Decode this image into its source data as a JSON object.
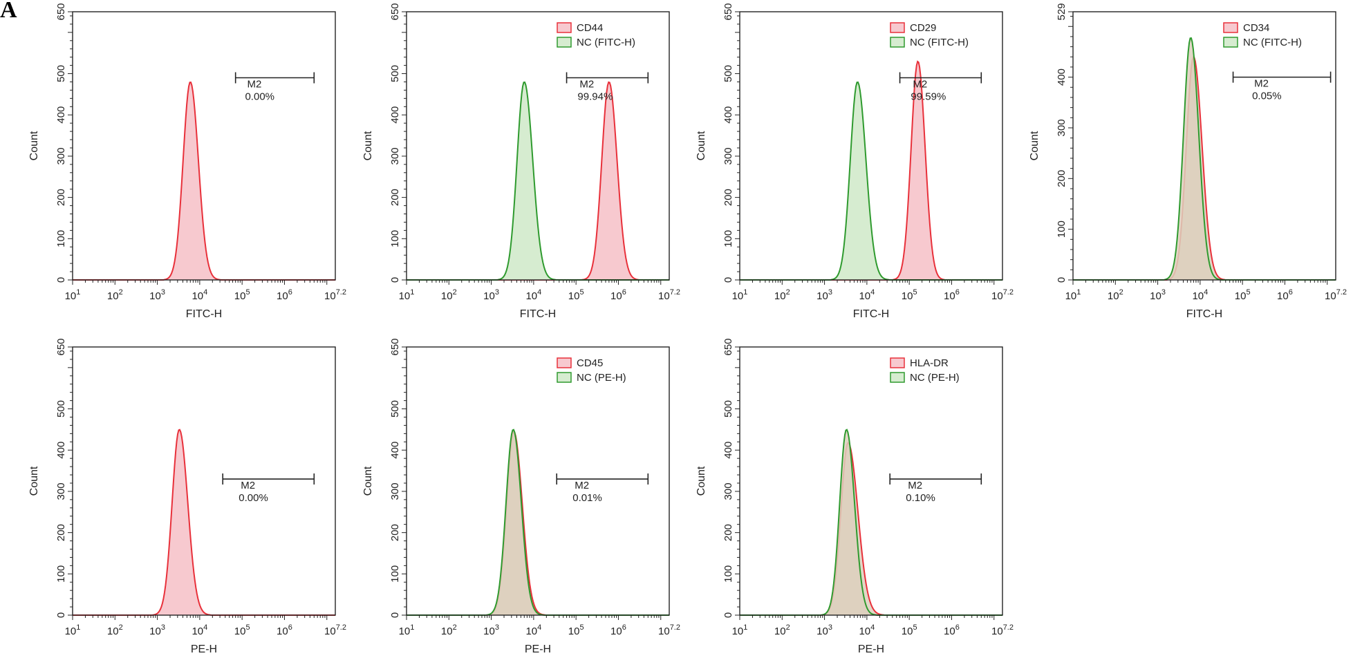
{
  "figure_label": "A",
  "colors": {
    "sample_line": "#e8303a",
    "sample_fill": "#f7c9cf",
    "control_line": "#2e9a2e",
    "control_fill": "#d6ecd0",
    "overlap_fill": "#ddd0bd",
    "axis": "#222222"
  },
  "chart_data": [
    {
      "type": "area",
      "x_scale": "log",
      "xlabel": "FITC-H",
      "ylabel": "Count",
      "xlim": [
        10,
        15848931.9
      ],
      "ylim": [
        0,
        650
      ],
      "x_ticks": [
        {
          "base": "10",
          "exp": "1",
          "v": 10
        },
        {
          "base": "10",
          "exp": "2",
          "v": 100
        },
        {
          "base": "10",
          "exp": "3",
          "v": 1000
        },
        {
          "base": "10",
          "exp": "4",
          "v": 10000
        },
        {
          "base": "10",
          "exp": "5",
          "v": 100000
        },
        {
          "base": "10",
          "exp": "6",
          "v": 1000000
        },
        {
          "base": "10",
          "exp": "7.2",
          "v": 15848931.9
        }
      ],
      "y_ticks": [
        0,
        100,
        200,
        300,
        400,
        500,
        650
      ],
      "legend": [],
      "series": [
        {
          "role": "sample",
          "peak_x": 6000,
          "peak_y": 480,
          "sigma_left": 0.17,
          "sigma_right": 0.19
        }
      ],
      "gate": {
        "label": "M2",
        "percent": "0.00%",
        "x_range": [
          70000,
          5000000
        ],
        "y": 490
      }
    },
    {
      "type": "area",
      "x_scale": "log",
      "xlabel": "FITC-H",
      "ylabel": "Count",
      "xlim": [
        10,
        15848931.9
      ],
      "ylim": [
        0,
        650
      ],
      "x_ticks": [
        {
          "base": "10",
          "exp": "1",
          "v": 10
        },
        {
          "base": "10",
          "exp": "2",
          "v": 100
        },
        {
          "base": "10",
          "exp": "3",
          "v": 1000
        },
        {
          "base": "10",
          "exp": "4",
          "v": 10000
        },
        {
          "base": "10",
          "exp": "5",
          "v": 100000
        },
        {
          "base": "10",
          "exp": "6",
          "v": 1000000
        },
        {
          "base": "10",
          "exp": "7.2",
          "v": 15848931.9
        }
      ],
      "y_ticks": [
        0,
        100,
        200,
        300,
        400,
        500,
        650
      ],
      "legend": [
        "CD44",
        "NC (FITC-H)"
      ],
      "series": [
        {
          "name": "CD44",
          "role": "sample",
          "peak_x": 600000,
          "peak_y": 480,
          "sigma_left": 0.17,
          "sigma_right": 0.19
        },
        {
          "name": "NC (FITC-H)",
          "role": "control",
          "peak_x": 6000,
          "peak_y": 480,
          "sigma_left": 0.17,
          "sigma_right": 0.2
        }
      ],
      "gate": {
        "label": "M2",
        "percent": "99.94%",
        "x_range": [
          60000,
          5000000
        ],
        "y": 490
      }
    },
    {
      "type": "area",
      "x_scale": "log",
      "xlabel": "FITC-H",
      "ylabel": "Count",
      "xlim": [
        10,
        15848931.9
      ],
      "ylim": [
        0,
        650
      ],
      "x_ticks": [
        {
          "base": "10",
          "exp": "1",
          "v": 10
        },
        {
          "base": "10",
          "exp": "2",
          "v": 100
        },
        {
          "base": "10",
          "exp": "3",
          "v": 1000
        },
        {
          "base": "10",
          "exp": "4",
          "v": 10000
        },
        {
          "base": "10",
          "exp": "5",
          "v": 100000
        },
        {
          "base": "10",
          "exp": "6",
          "v": 1000000
        },
        {
          "base": "10",
          "exp": "7.2",
          "v": 15848931.9
        }
      ],
      "y_ticks": [
        0,
        100,
        200,
        300,
        400,
        500,
        650
      ],
      "legend": [
        "CD29",
        "NC (FITC-H)"
      ],
      "series": [
        {
          "name": "CD29",
          "role": "sample",
          "peak_x": 160000,
          "peak_y": 530,
          "sigma_left": 0.16,
          "sigma_right": 0.17
        },
        {
          "name": "NC (FITC-H)",
          "role": "control",
          "peak_x": 6000,
          "peak_y": 480,
          "sigma_left": 0.17,
          "sigma_right": 0.2
        }
      ],
      "gate": {
        "label": "M2",
        "percent": "99.59%",
        "x_range": [
          60000,
          5000000
        ],
        "y": 490
      }
    },
    {
      "type": "area",
      "x_scale": "log",
      "xlabel": "FITC-H",
      "ylabel": "Count",
      "xlim": [
        10,
        15848931.9
      ],
      "ylim": [
        0,
        529
      ],
      "x_ticks": [
        {
          "base": "10",
          "exp": "1",
          "v": 10
        },
        {
          "base": "10",
          "exp": "2",
          "v": 100
        },
        {
          "base": "10",
          "exp": "3",
          "v": 1000
        },
        {
          "base": "10",
          "exp": "4",
          "v": 10000
        },
        {
          "base": "10",
          "exp": "5",
          "v": 100000
        },
        {
          "base": "10",
          "exp": "6",
          "v": 1000000
        },
        {
          "base": "10",
          "exp": "7.2",
          "v": 15848931.9
        }
      ],
      "y_ticks": [
        0,
        100,
        200,
        300,
        400,
        529
      ],
      "legend": [
        "CD34",
        "NC (FITC-H)"
      ],
      "series": [
        {
          "name": "CD34",
          "role": "sample",
          "peak_x": 7000,
          "peak_y": 440,
          "sigma_left": 0.17,
          "sigma_right": 0.2
        },
        {
          "name": "NC (FITC-H)",
          "role": "control",
          "peak_x": 6000,
          "peak_y": 478,
          "sigma_left": 0.17,
          "sigma_right": 0.19
        }
      ],
      "gate": {
        "label": "M2",
        "percent": "0.05%",
        "x_range": [
          60000,
          12000000
        ],
        "y": 400
      }
    },
    {
      "type": "area",
      "x_scale": "log",
      "xlabel": "PE-H",
      "ylabel": "Count",
      "xlim": [
        10,
        15848931.9
      ],
      "ylim": [
        0,
        650
      ],
      "x_ticks": [
        {
          "base": "10",
          "exp": "1",
          "v": 10
        },
        {
          "base": "10",
          "exp": "2",
          "v": 100
        },
        {
          "base": "10",
          "exp": "3",
          "v": 1000
        },
        {
          "base": "10",
          "exp": "4",
          "v": 10000
        },
        {
          "base": "10",
          "exp": "5",
          "v": 100000
        },
        {
          "base": "10",
          "exp": "6",
          "v": 1000000
        },
        {
          "base": "10",
          "exp": "7.2",
          "v": 15848931.9
        }
      ],
      "y_ticks": [
        0,
        100,
        200,
        300,
        400,
        500,
        650
      ],
      "legend": [],
      "series": [
        {
          "role": "sample",
          "peak_x": 3300,
          "peak_y": 450,
          "sigma_left": 0.17,
          "sigma_right": 0.2
        }
      ],
      "gate": {
        "label": "M2",
        "percent": "0.00%",
        "x_range": [
          35000,
          5000000
        ],
        "y": 330
      }
    },
    {
      "type": "area",
      "x_scale": "log",
      "xlabel": "PE-H",
      "ylabel": "Count",
      "xlim": [
        10,
        15848931.9
      ],
      "ylim": [
        0,
        650
      ],
      "x_ticks": [
        {
          "base": "10",
          "exp": "1",
          "v": 10
        },
        {
          "base": "10",
          "exp": "2",
          "v": 100
        },
        {
          "base": "10",
          "exp": "3",
          "v": 1000
        },
        {
          "base": "10",
          "exp": "4",
          "v": 10000
        },
        {
          "base": "10",
          "exp": "5",
          "v": 100000
        },
        {
          "base": "10",
          "exp": "6",
          "v": 1000000
        },
        {
          "base": "10",
          "exp": "7.2",
          "v": 15848931.9
        }
      ],
      "y_ticks": [
        0,
        100,
        200,
        300,
        400,
        500,
        650
      ],
      "legend": [
        "CD45",
        "NC (PE-H)"
      ],
      "series": [
        {
          "name": "CD45",
          "role": "sample",
          "peak_x": 3400,
          "peak_y": 445,
          "sigma_left": 0.17,
          "sigma_right": 0.2
        },
        {
          "name": "NC (PE-H)",
          "role": "control",
          "peak_x": 3300,
          "peak_y": 450,
          "sigma_left": 0.17,
          "sigma_right": 0.19
        }
      ],
      "gate": {
        "label": "M2",
        "percent": "0.01%",
        "x_range": [
          35000,
          5000000
        ],
        "y": 330
      }
    },
    {
      "type": "area",
      "x_scale": "log",
      "xlabel": "PE-H",
      "ylabel": "Count",
      "xlim": [
        10,
        15848931.9
      ],
      "ylim": [
        0,
        650
      ],
      "x_ticks": [
        {
          "base": "10",
          "exp": "1",
          "v": 10
        },
        {
          "base": "10",
          "exp": "2",
          "v": 100
        },
        {
          "base": "10",
          "exp": "3",
          "v": 1000
        },
        {
          "base": "10",
          "exp": "4",
          "v": 10000
        },
        {
          "base": "10",
          "exp": "5",
          "v": 100000
        },
        {
          "base": "10",
          "exp": "6",
          "v": 1000000
        },
        {
          "base": "10",
          "exp": "7.2",
          "v": 15848931.9
        }
      ],
      "y_ticks": [
        0,
        100,
        200,
        300,
        400,
        500,
        650
      ],
      "legend": [
        "HLA-DR",
        "NC (PE-H)"
      ],
      "series": [
        {
          "name": "HLA-DR",
          "role": "sample",
          "peak_x": 3600,
          "peak_y": 418,
          "sigma_left": 0.17,
          "sigma_right": 0.23
        },
        {
          "name": "NC (PE-H)",
          "role": "control",
          "peak_x": 3300,
          "peak_y": 450,
          "sigma_left": 0.16,
          "sigma_right": 0.19
        }
      ],
      "gate": {
        "label": "M2",
        "percent": "0.10%",
        "x_range": [
          35000,
          5000000
        ],
        "y": 330
      }
    }
  ]
}
